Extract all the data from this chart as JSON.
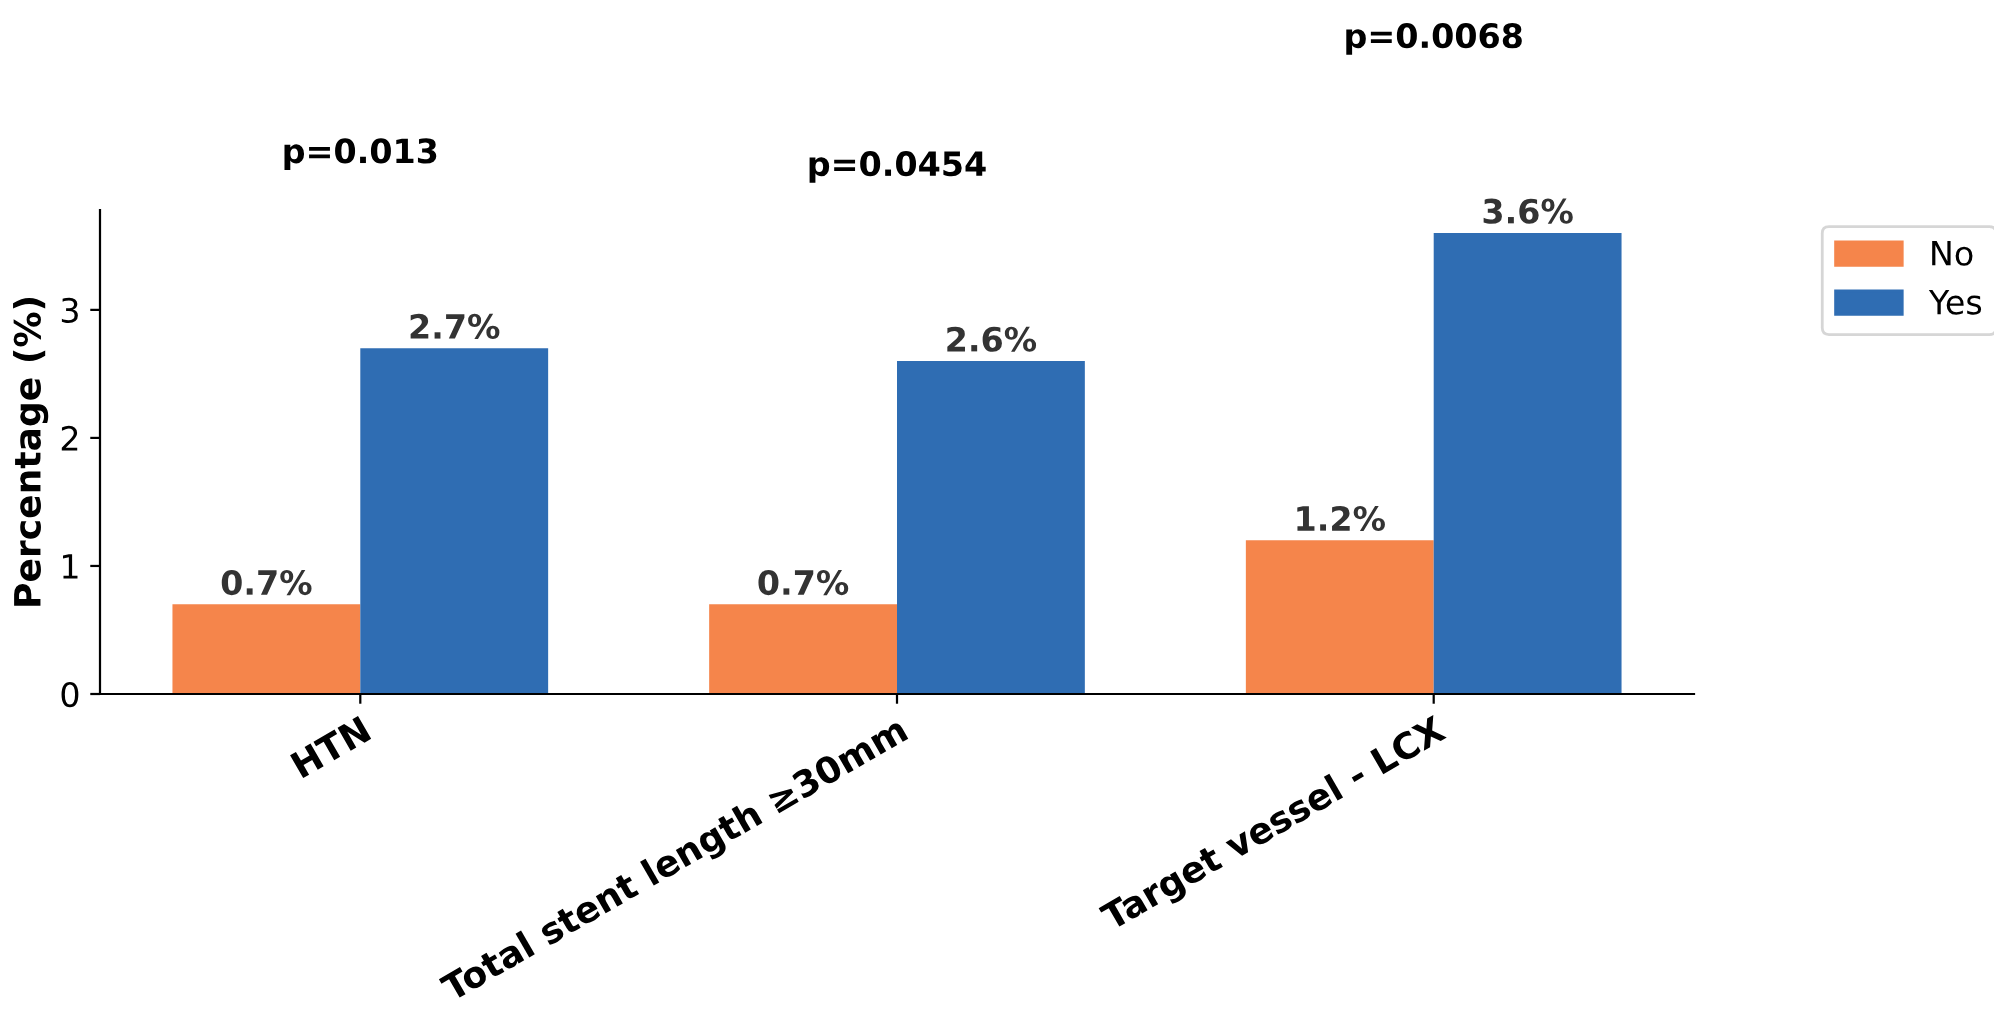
{
  "chart_data": {
    "type": "bar",
    "ylabel": "Percentage (%)",
    "categories": [
      "HTN",
      "Total stent length ≥30mm",
      "Target vessel - LCX"
    ],
    "series": [
      {
        "name": "No",
        "color": "#f5854b",
        "values": [
          0.7,
          0.7,
          1.2
        ],
        "value_labels": [
          "0.7%",
          "0.7%",
          "1.2%"
        ]
      },
      {
        "name": "Yes",
        "color": "#2f6db3",
        "values": [
          2.7,
          2.6,
          3.6
        ],
        "value_labels": [
          "2.7%",
          "2.6%",
          "3.6%"
        ]
      }
    ],
    "annotations": [
      "p=0.013",
      "p=0.0454",
      "p=0.0068"
    ],
    "ylim": [
      0,
      3.78
    ],
    "yticks": [
      0,
      1,
      2,
      3
    ],
    "grid": false,
    "legend": "top right"
  }
}
